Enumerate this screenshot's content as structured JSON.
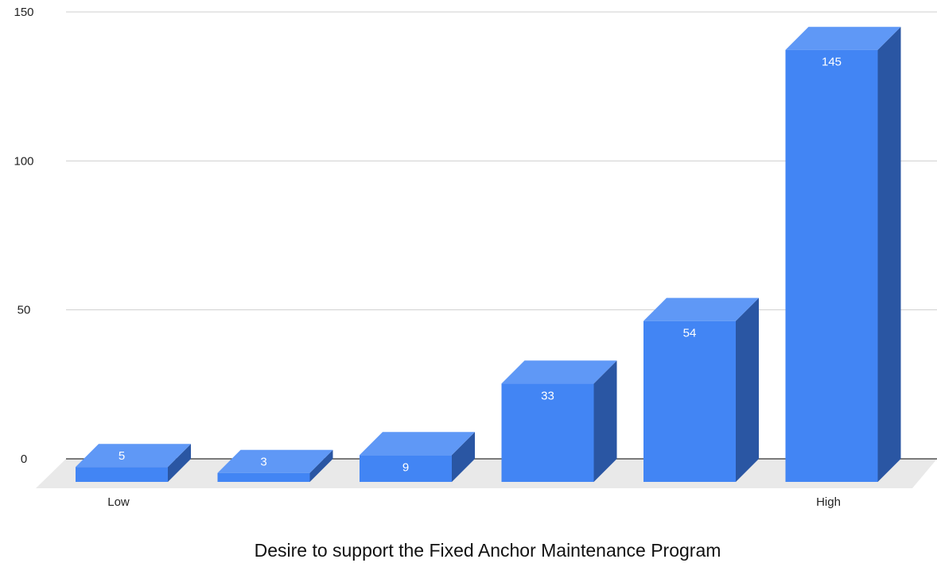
{
  "chart_data": {
    "type": "bar",
    "style": "3d-column",
    "title": "Desire to support the Fixed Anchor Maintenance Program",
    "categories": [
      "Low",
      "",
      "",
      "",
      "",
      "High"
    ],
    "values": [
      5,
      3,
      9,
      33,
      54,
      145
    ],
    "data_labels": [
      "5",
      "3",
      "9",
      "33",
      "54",
      "145"
    ],
    "ylim": [
      0,
      150
    ],
    "yticks": [
      0,
      50,
      100,
      150
    ],
    "ytick_labels": [
      "0",
      "50",
      "100",
      "150"
    ],
    "grid": true,
    "legend": "none",
    "colors": {
      "bar_front": "#4285f4",
      "bar_top": "#5f98f6",
      "bar_side": "#2a56a3",
      "floor": "#e9e9e9",
      "grid": "#cfcfcf",
      "axis": "#333333"
    }
  }
}
